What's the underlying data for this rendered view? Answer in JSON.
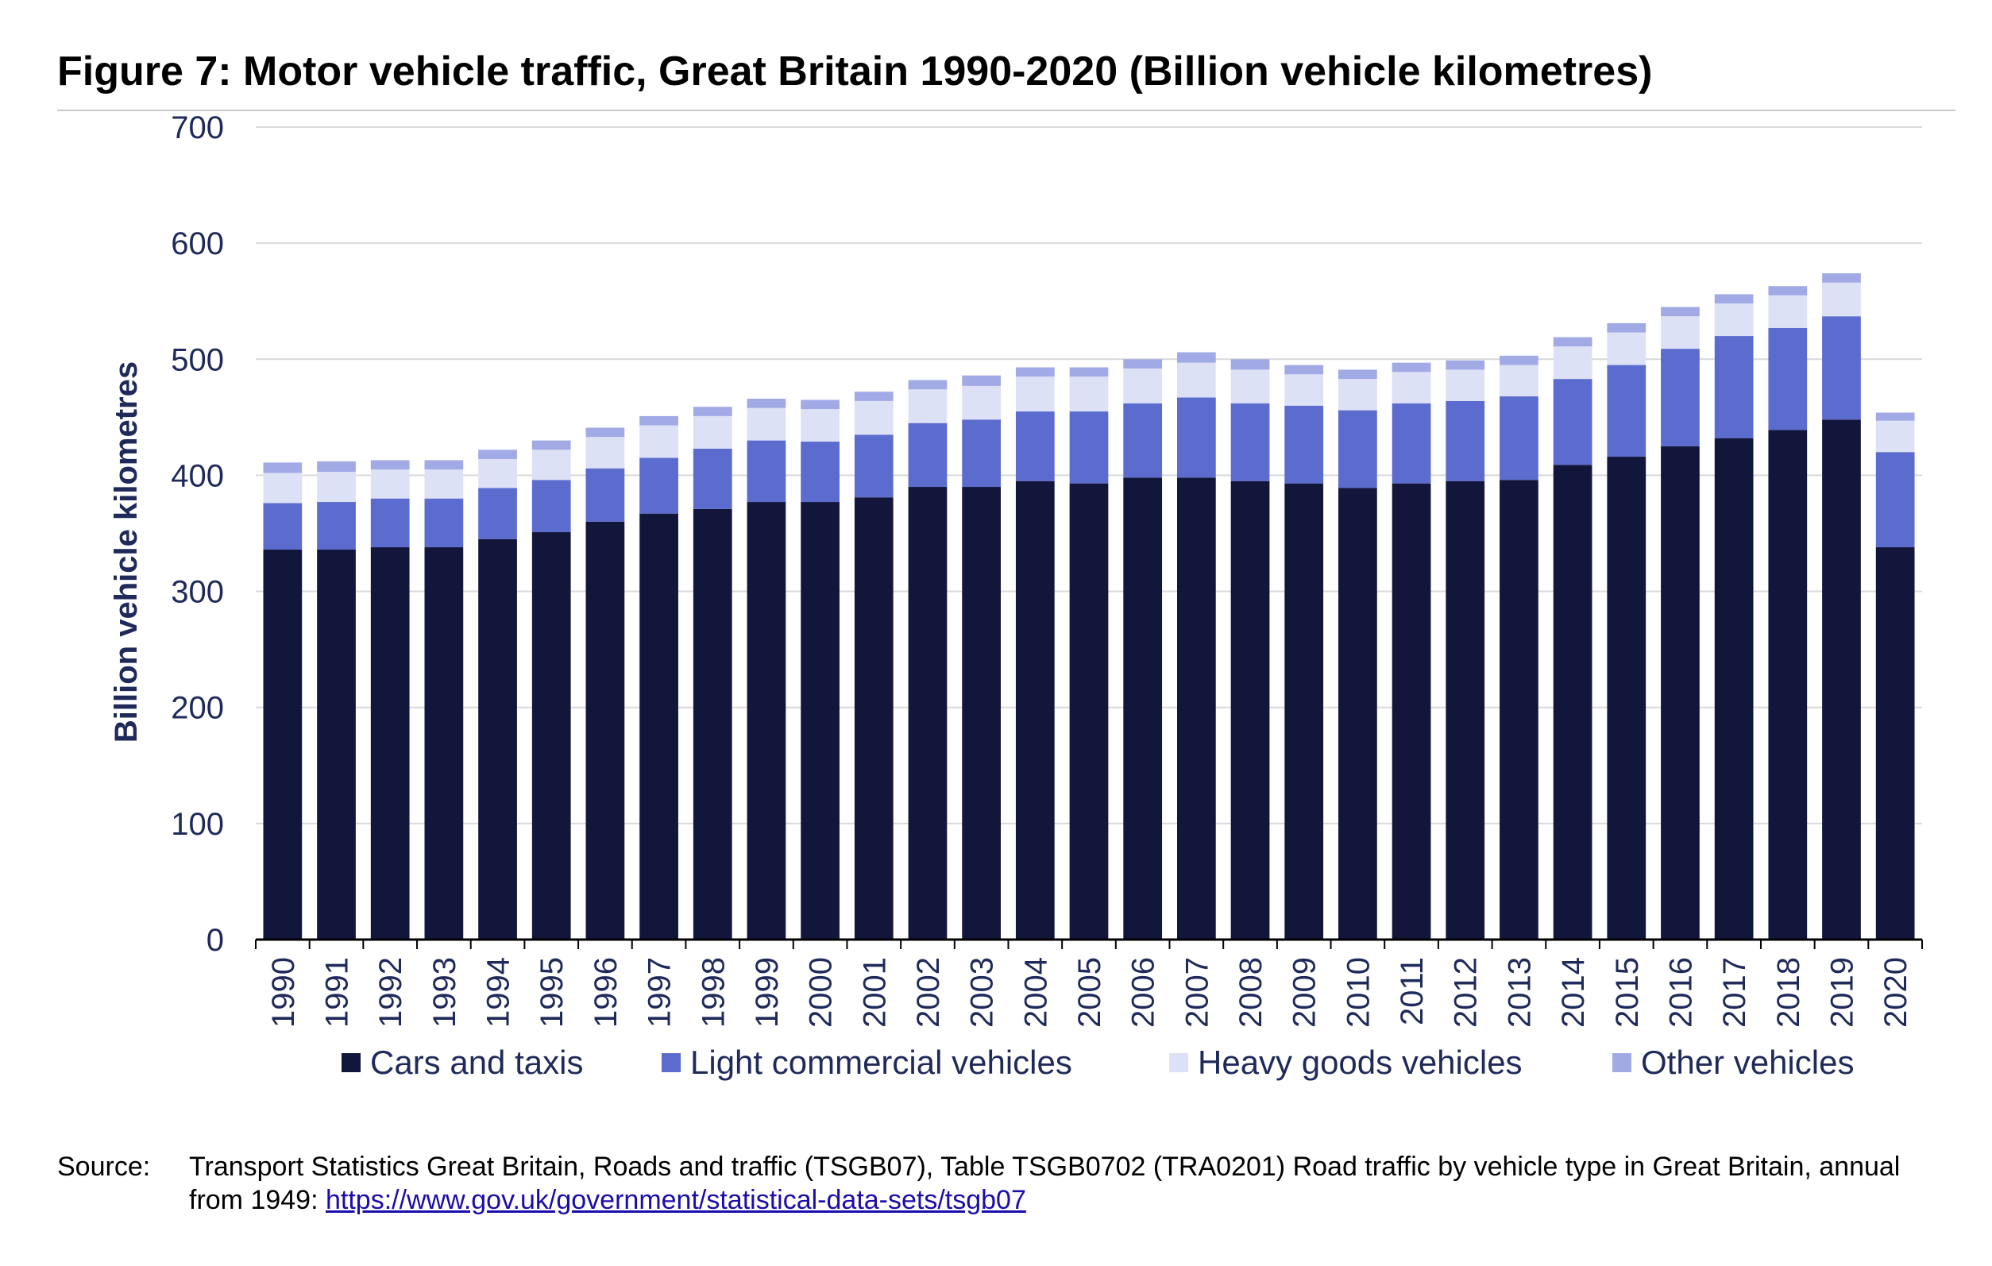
{
  "title": "Figure 7: Motor vehicle traffic, Great Britain 1990-2020 (Billion vehicle kilometres)",
  "source": {
    "label": "Source:",
    "text": "Transport Statistics Great Britain, Roads and traffic (TSGB07), Table  TSGB0702 (TRA0201) Road traffic by vehicle type in Great Britain, annual from 1949: ",
    "link": "https://www.gov.uk/government/statistical-data-sets/tsgb07"
  },
  "colors": {
    "cars": "#12163a",
    "lcv": "#5b6bce",
    "hgv": "#dde1f6",
    "other": "#a2aae6",
    "axis_text": "#1f2a5a",
    "grid": "#d9d9d9"
  },
  "chart_data": {
    "type": "bar",
    "stacked": true,
    "ylabel": "Billion vehicle kilometres",
    "xlabel": "",
    "ylim": [
      0,
      700
    ],
    "yticks": [
      0,
      100,
      200,
      300,
      400,
      500,
      600,
      700
    ],
    "grid": true,
    "legend": "bottom",
    "categories": [
      "1990",
      "1991",
      "1992",
      "1993",
      "1994",
      "1995",
      "1996",
      "1997",
      "1998",
      "1999",
      "2000",
      "2001",
      "2002",
      "2003",
      "2004",
      "2005",
      "2006",
      "2007",
      "2008",
      "2009",
      "2010",
      "2011",
      "2012",
      "2013",
      "2014",
      "2015",
      "2016",
      "2017",
      "2018",
      "2019",
      "2020"
    ],
    "series": [
      {
        "name": "Cars and taxis",
        "color_key": "cars",
        "values": [
          336,
          336,
          338,
          338,
          345,
          351,
          360,
          367,
          371,
          377,
          377,
          381,
          390,
          390,
          395,
          393,
          398,
          398,
          395,
          393,
          389,
          393,
          395,
          396,
          409,
          416,
          425,
          432,
          439,
          448,
          338
        ]
      },
      {
        "name": "Light commercial vehicles",
        "color_key": "lcv",
        "values": [
          40,
          41,
          42,
          42,
          44,
          45,
          46,
          48,
          52,
          53,
          52,
          54,
          55,
          58,
          60,
          62,
          64,
          69,
          67,
          67,
          67,
          69,
          69,
          72,
          74,
          79,
          84,
          88,
          88,
          89,
          82
        ]
      },
      {
        "name": "Heavy goods vehicles",
        "color_key": "hgv",
        "values": [
          26,
          26,
          25,
          25,
          25,
          26,
          27,
          28,
          28,
          28,
          28,
          29,
          29,
          29,
          30,
          30,
          30,
          30,
          29,
          27,
          27,
          27,
          27,
          27,
          28,
          28,
          28,
          28,
          28,
          29,
          27
        ]
      },
      {
        "name": "Other vehicles",
        "color_key": "other",
        "values": [
          9,
          9,
          8,
          8,
          8,
          8,
          8,
          8,
          8,
          8,
          8,
          8,
          8,
          9,
          8,
          8,
          8,
          9,
          9,
          8,
          8,
          8,
          8,
          8,
          8,
          8,
          8,
          8,
          8,
          8,
          7
        ]
      }
    ]
  }
}
